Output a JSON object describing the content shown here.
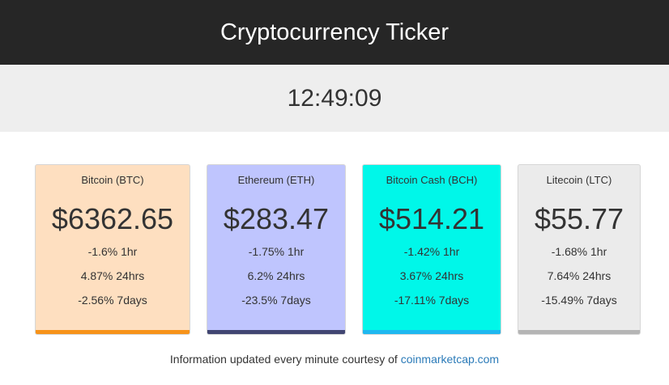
{
  "header": {
    "title": "Cryptocurrency Ticker"
  },
  "clock": {
    "time": "12:49:09"
  },
  "cards": [
    {
      "name": "Bitcoin (BTC)",
      "price": "$6362.65",
      "change_1h": "-1.6% 1hr",
      "change_24h": "4.87% 24hrs",
      "change_7d": "-2.56% 7days",
      "bg_color": "#fedfc0",
      "accent_color": "#f7931a"
    },
    {
      "name": "Ethereum (ETH)",
      "price": "$283.47",
      "change_1h": "-1.75% 1hr",
      "change_24h": "6.2% 24hrs",
      "change_7d": "-23.5% 7days",
      "bg_color": "#bfc5fe",
      "accent_color": "#414672"
    },
    {
      "name": "Bitcoin Cash (BCH)",
      "price": "$514.21",
      "change_1h": "-1.42% 1hr",
      "change_24h": "3.67% 24hrs",
      "change_7d": "-17.11% 7days",
      "bg_color": "#00f7e9",
      "accent_color": "#1fb8f0"
    },
    {
      "name": "Litecoin (LTC)",
      "price": "$55.77",
      "change_1h": "-1.68% 1hr",
      "change_24h": "7.64% 24hrs",
      "change_7d": "-15.49% 7days",
      "bg_color": "#ebebeb",
      "accent_color": "#b5b5b5"
    }
  ],
  "footer": {
    "text": "Information updated every minute courtesy of ",
    "link_text": "coinmarketcap.com"
  }
}
